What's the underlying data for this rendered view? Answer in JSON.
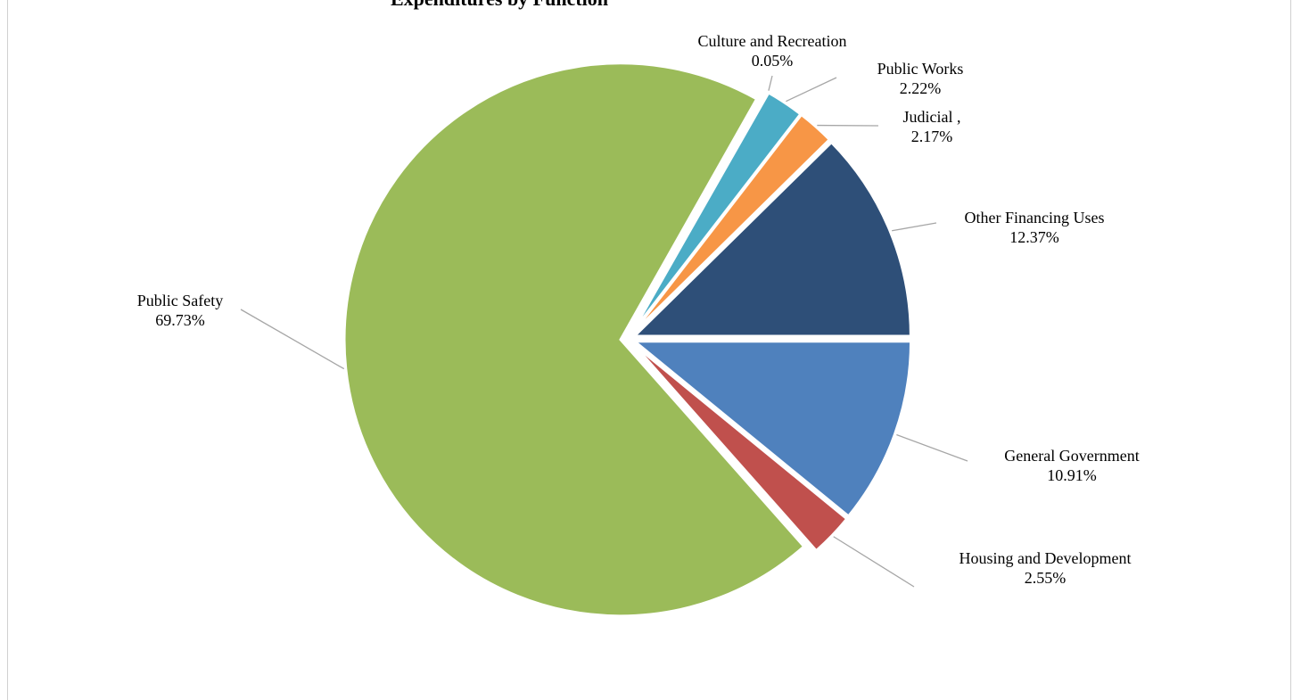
{
  "chart_data": {
    "type": "pie",
    "title": "Expenditures by Function",
    "slices": [
      {
        "label": "Other Financing Uses",
        "value": 12.37,
        "display": "12.37%",
        "color": "#2e4f78"
      },
      {
        "label": "Judicial ,",
        "value": 2.17,
        "display": "2.17%",
        "color": "#f79646"
      },
      {
        "label": "Public Works",
        "value": 2.22,
        "display": "2.22%",
        "color": "#4bacc6"
      },
      {
        "label": "Culture and Recreation",
        "value": 0.05,
        "display": "0.05%",
        "color": "#8064a2"
      },
      {
        "label": "Public Safety",
        "value": 69.73,
        "display": "69.73%",
        "color": "#9bbb59"
      },
      {
        "label": "Housing and Development",
        "value": 2.55,
        "display": "2.55%",
        "color": "#c0504d"
      },
      {
        "label": "General Government",
        "value": 10.91,
        "display": "10.91%",
        "color": "#4f81bd"
      }
    ],
    "legend": "none",
    "data_labels": "outside with leader lines"
  }
}
